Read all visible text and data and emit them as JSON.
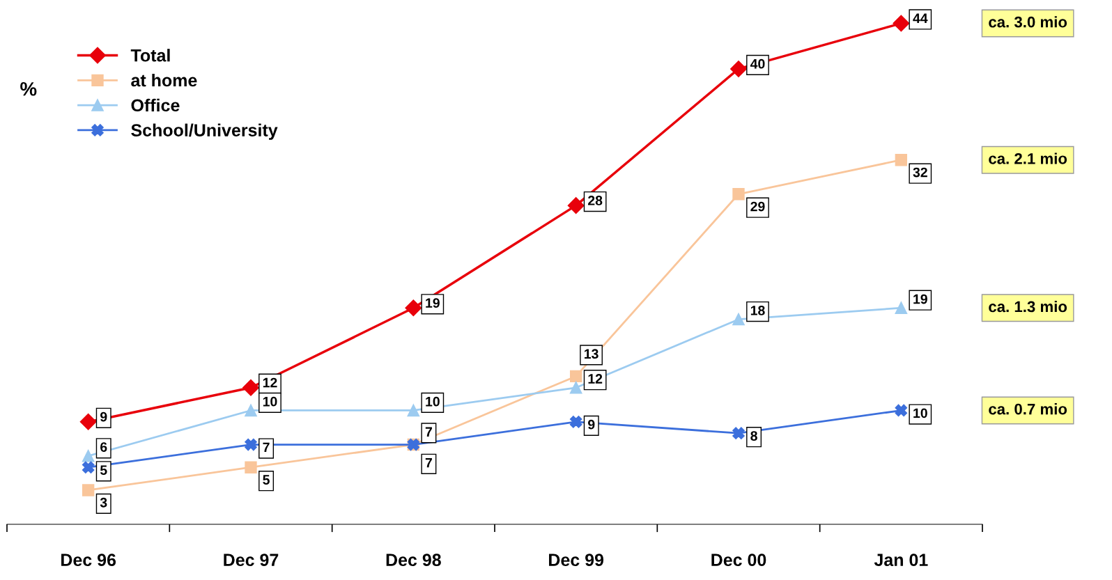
{
  "chart_data": {
    "type": "line",
    "ylabel": "%",
    "categories": [
      "Dec 96",
      "Dec 97",
      "Dec 98",
      "Dec 99",
      "Dec 00",
      "Jan 01"
    ],
    "series": [
      {
        "name": "Total",
        "color": "#e8000b",
        "marker": "diamond",
        "values": [
          9,
          12,
          19,
          28,
          40,
          44
        ]
      },
      {
        "name": "at home",
        "color": "#f9c59a",
        "marker": "square",
        "values": [
          3,
          5,
          7,
          13,
          29,
          32
        ]
      },
      {
        "name": "Office",
        "color": "#9ccbf0",
        "marker": "triangle",
        "values": [
          6,
          10,
          10,
          12,
          18,
          19
        ]
      },
      {
        "name": "School/University",
        "color": "#3c6fdc",
        "marker": "cross",
        "values": [
          5,
          7,
          7,
          9,
          8,
          10
        ]
      }
    ],
    "data_labels": true,
    "legend": "top left",
    "grid": false,
    "annotations": [
      "ca. 3.0 mio",
      "ca. 2.1 mio",
      "ca. 1.3 mio",
      "ca. 0.7 mio"
    ]
  }
}
